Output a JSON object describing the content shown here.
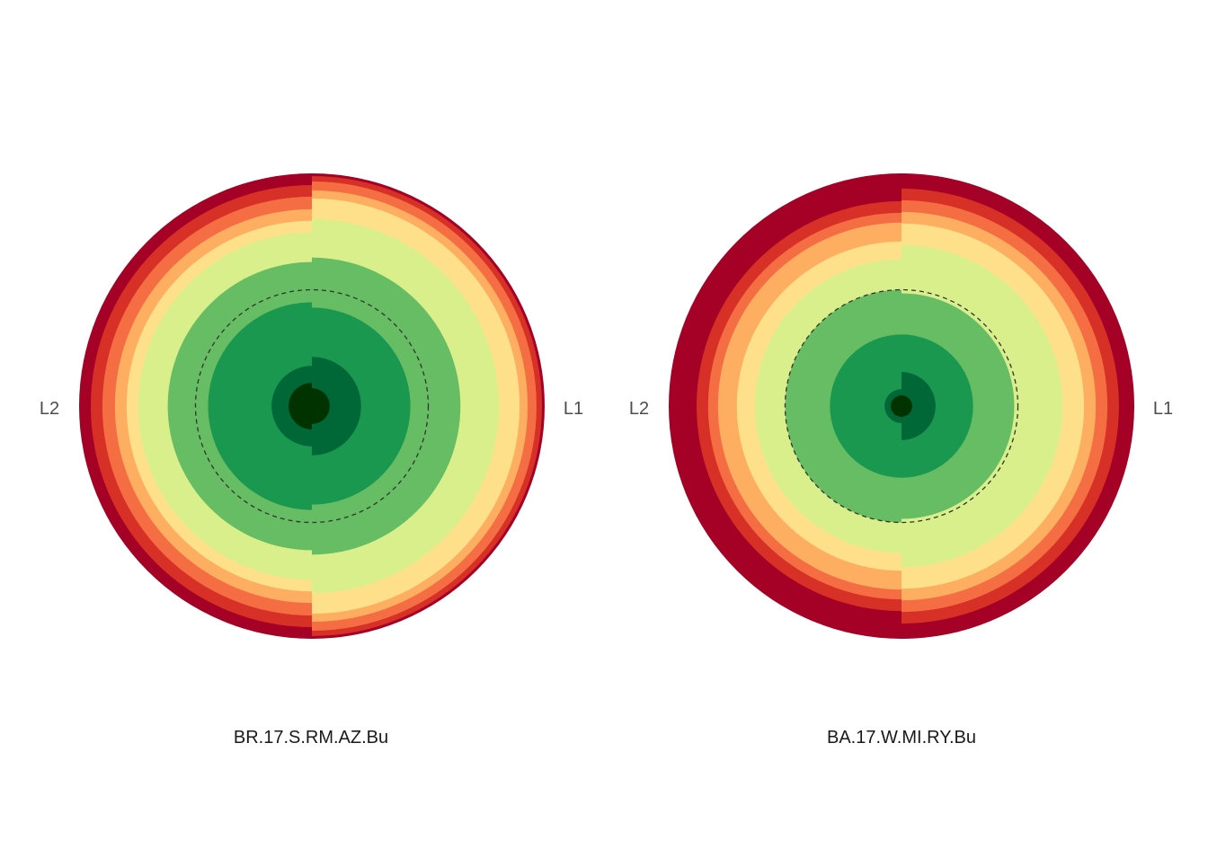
{
  "chart_data": [
    {
      "type": "polar-half-rings",
      "title": "BR.17.S.RM.AZ.Bu",
      "left_label": "L2",
      "right_label": "L1",
      "scale_max": 260,
      "dashed_ring_value": 130,
      "halves": {
        "right": [
          {
            "value": 260,
            "color": "#a50026"
          },
          {
            "value": 257,
            "color": "#d73027"
          },
          {
            "value": 251,
            "color": "#f46d43"
          },
          {
            "value": 241,
            "color": "#fdae61"
          },
          {
            "value": 232,
            "color": "#fee08b"
          },
          {
            "value": 209,
            "color": "#d9ef8b"
          },
          {
            "value": 166,
            "color": "#66bd63"
          },
          {
            "value": 110,
            "color": "#1a9850"
          },
          {
            "value": 55,
            "color": "#006837"
          },
          {
            "value": 20,
            "color": "#003300"
          }
        ],
        "left": [
          {
            "value": 260,
            "color": "#a50026"
          },
          {
            "value": 247,
            "color": "#d73027"
          },
          {
            "value": 234,
            "color": "#f46d43"
          },
          {
            "value": 220,
            "color": "#fdae61"
          },
          {
            "value": 207,
            "color": "#fee08b"
          },
          {
            "value": 194,
            "color": "#d9ef8b"
          },
          {
            "value": 161,
            "color": "#66bd63"
          },
          {
            "value": 116,
            "color": "#1a9850"
          },
          {
            "value": 45,
            "color": "#006837"
          },
          {
            "value": 26,
            "color": "#003300"
          }
        ]
      }
    },
    {
      "type": "polar-half-rings",
      "title": "BA.17.W.MI.RY.Bu",
      "left_label": "L2",
      "right_label": "L1",
      "scale_max": 260,
      "dashed_ring_value": 130,
      "halves": {
        "right": [
          {
            "value": 260,
            "color": "#a50026"
          },
          {
            "value": 243,
            "color": "#d73027"
          },
          {
            "value": 230,
            "color": "#f46d43"
          },
          {
            "value": 217,
            "color": "#fdae61"
          },
          {
            "value": 204,
            "color": "#fee08b"
          },
          {
            "value": 180,
            "color": "#d9ef8b"
          },
          {
            "value": 126,
            "color": "#66bd63"
          },
          {
            "value": 80,
            "color": "#1a9850"
          },
          {
            "value": 38,
            "color": "#006837"
          },
          {
            "value": 12,
            "color": "#003300"
          }
        ],
        "left": [
          {
            "value": 260,
            "color": "#a50026"
          },
          {
            "value": 229,
            "color": "#d73027"
          },
          {
            "value": 216,
            "color": "#f46d43"
          },
          {
            "value": 205,
            "color": "#fdae61"
          },
          {
            "value": 184,
            "color": "#fee08b"
          },
          {
            "value": 164,
            "color": "#d9ef8b"
          },
          {
            "value": 130,
            "color": "#66bd63"
          },
          {
            "value": 80,
            "color": "#1a9850"
          },
          {
            "value": 19,
            "color": "#006837"
          },
          {
            "value": 12,
            "color": "#003300"
          }
        ]
      }
    }
  ]
}
